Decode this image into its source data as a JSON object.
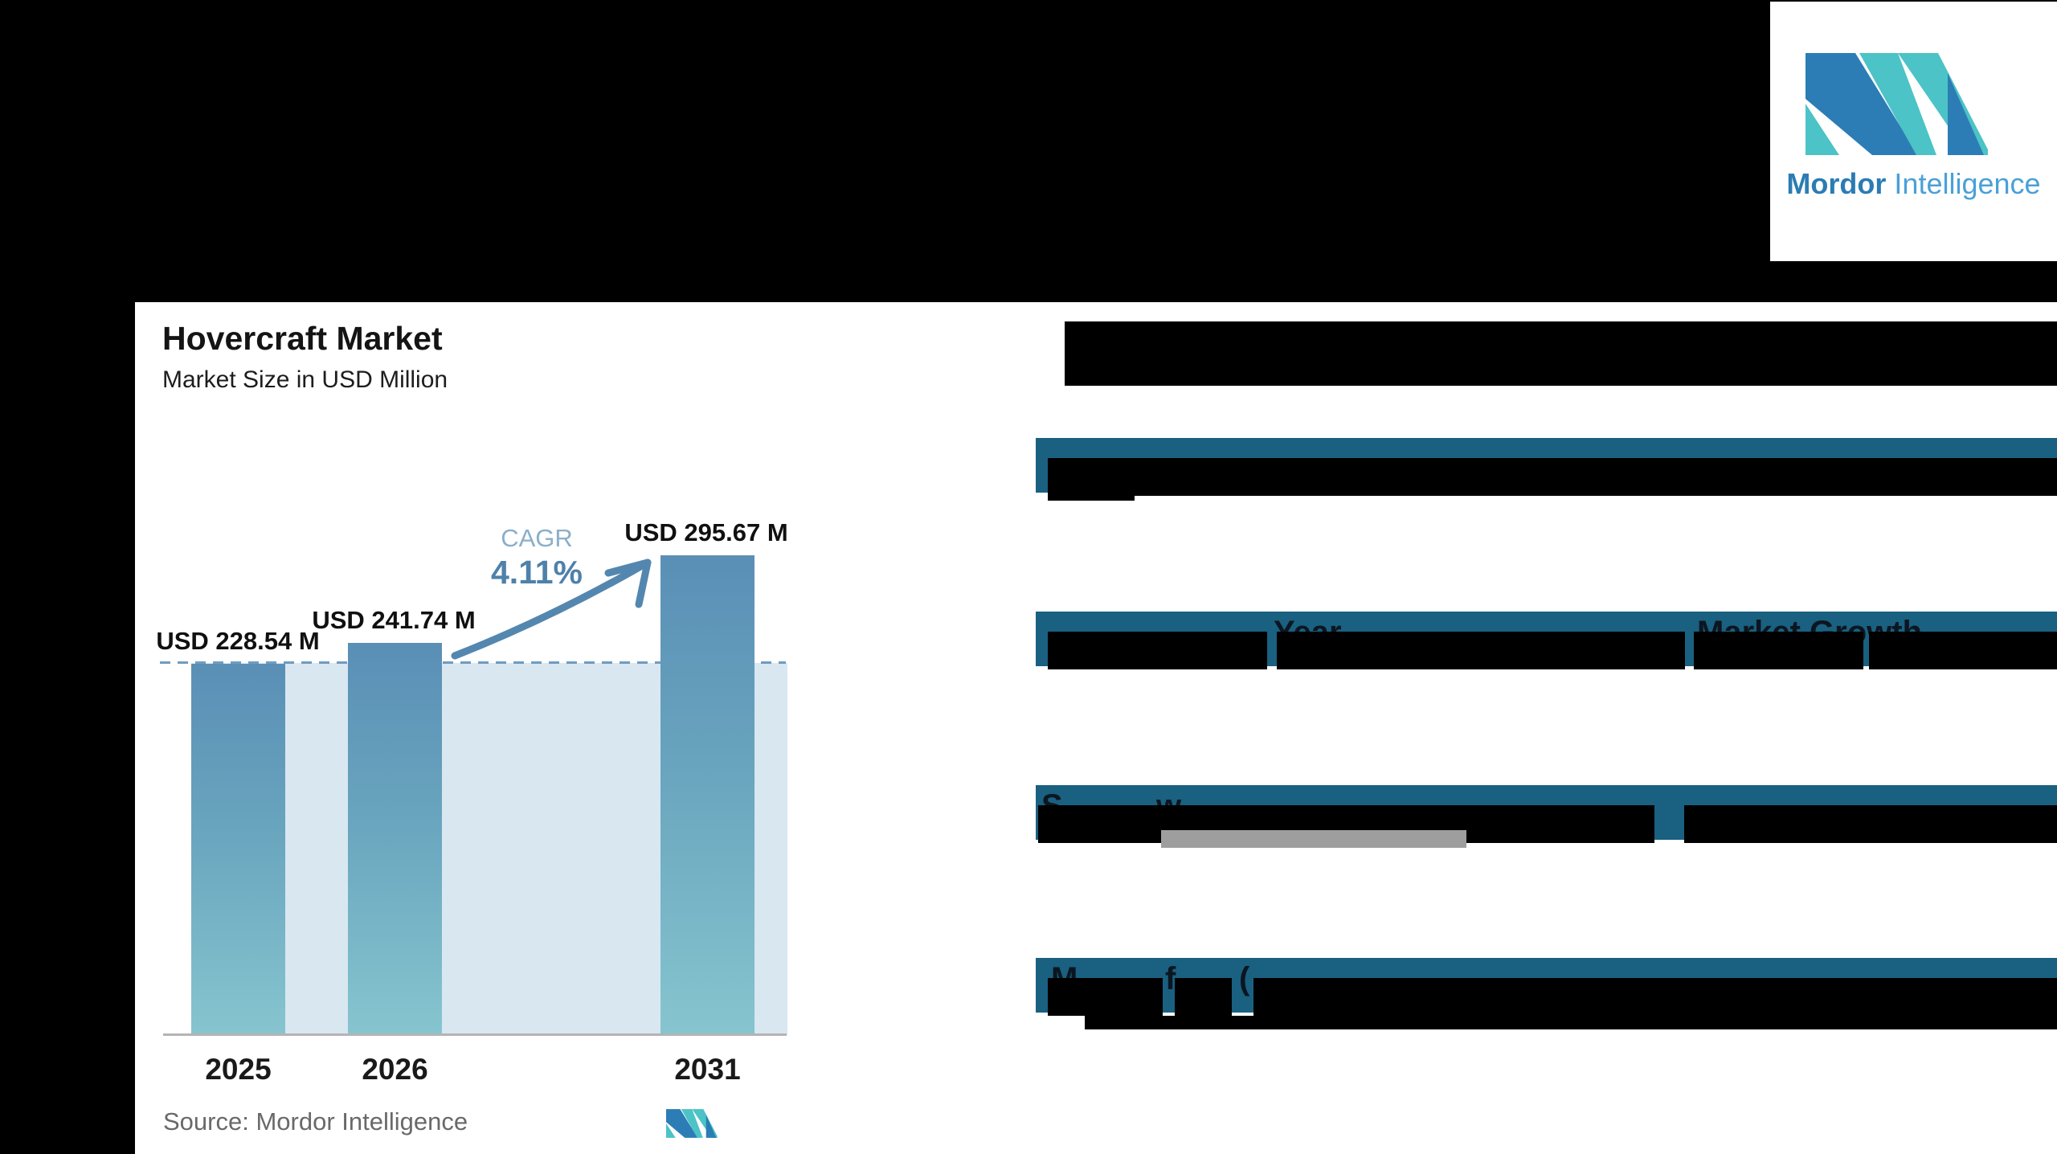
{
  "logo": {
    "brand_bold": "Mordor",
    "brand_light": "Intelligence",
    "blue": "#2c7db5",
    "teal": "#4cc3c6"
  },
  "chart": {
    "title": "Hovercraft Market",
    "subtitle": "Market Size in USD Million",
    "cagr_label": "CAGR",
    "cagr_value": "4.11%",
    "source_label": "Source:",
    "source_value": "Mordor Intelligence"
  },
  "chart_data": {
    "type": "bar",
    "title": "Hovercraft Market",
    "subtitle": "Market Size in USD Million",
    "categories": [
      "2025",
      "2026",
      "2031"
    ],
    "values": [
      228.54,
      241.74,
      295.67
    ],
    "data_labels": [
      "USD 228.54 M",
      "USD 241.74 M",
      "USD 295.67 M"
    ],
    "unit": "USD Million",
    "ylabel": "",
    "xlabel": "",
    "grid": false,
    "legend": false,
    "baseline_dashed_at": 228.54,
    "annotations": [
      {
        "label": "CAGR",
        "value": "4.11%"
      }
    ],
    "source": "Source: Mordor Intelligence",
    "bar_color_top": "#5a8fb6",
    "bar_color_bottom": "#86c5cf",
    "below_baseline_fill": "#d9e7f1"
  },
  "snapshot": {
    "header_bar_color": "#1a6080",
    "rows": [
      {
        "fragments": []
      },
      {
        "fragments": [
          {
            "t": "Year"
          },
          {
            "t": "Market Growth"
          }
        ]
      },
      {
        "fragments": [
          {
            "t": "S"
          },
          {
            "t": "w"
          }
        ]
      },
      {
        "fragments": [
          {
            "t": "M"
          },
          {
            "t": "f"
          },
          {
            "t": "("
          }
        ]
      }
    ]
  }
}
